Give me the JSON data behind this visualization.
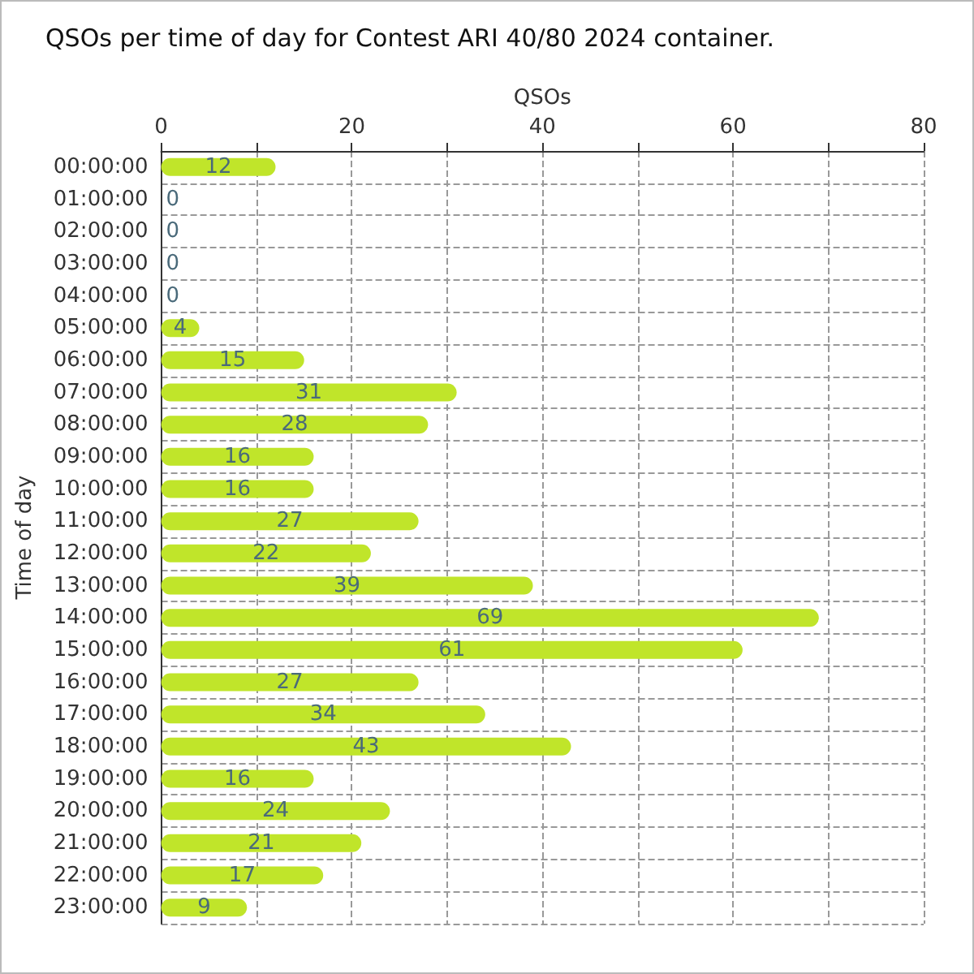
{
  "chart_data": {
    "type": "bar",
    "title": "QSOs per time of day for Contest ARI 40/80 2024 container.",
    "xlabel": "QSOs",
    "ylabel": "Time of day",
    "orientation": "horizontal",
    "categories": [
      "00:00:00",
      "01:00:00",
      "02:00:00",
      "03:00:00",
      "04:00:00",
      "05:00:00",
      "06:00:00",
      "07:00:00",
      "08:00:00",
      "09:00:00",
      "10:00:00",
      "11:00:00",
      "12:00:00",
      "13:00:00",
      "14:00:00",
      "15:00:00",
      "16:00:00",
      "17:00:00",
      "18:00:00",
      "19:00:00",
      "20:00:00",
      "21:00:00",
      "22:00:00",
      "23:00:00"
    ],
    "values": [
      12,
      0,
      0,
      0,
      0,
      4,
      15,
      31,
      28,
      16,
      16,
      27,
      22,
      39,
      69,
      61,
      27,
      34,
      43,
      16,
      24,
      21,
      17,
      9
    ],
    "color": "#c0e52a",
    "xlim": [
      0,
      80
    ],
    "xticks": [
      0,
      {
        "value": 10,
        "label": null
      },
      20,
      {
        "value": 30,
        "label": null
      },
      40,
      {
        "value": 50,
        "label": null
      },
      60,
      {
        "value": 70,
        "label": null
      },
      80
    ],
    "grid": true,
    "data_labels": true
  }
}
